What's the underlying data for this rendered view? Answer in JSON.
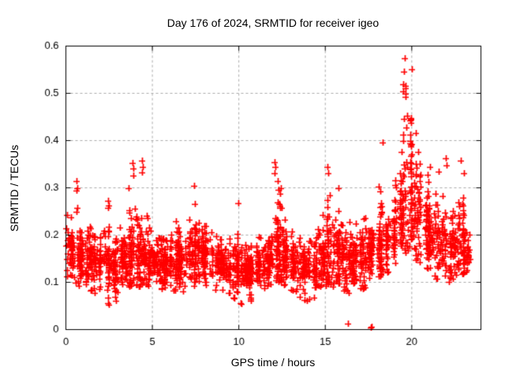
{
  "chart_data": {
    "type": "scatter",
    "title": "Day 176 of 2024, SRMTID for receiver igeo",
    "xlabel": "GPS time / hours",
    "ylabel": "SRMTID / TECUs",
    "xlim": [
      0,
      24
    ],
    "ylim": [
      0,
      0.6
    ],
    "xtick_values": [
      0,
      5,
      10,
      15,
      20
    ],
    "xtick_labels": [
      "0",
      "5",
      "10",
      "15",
      "20"
    ],
    "ytick_values": [
      0,
      0.1,
      0.2,
      0.3,
      0.4,
      0.5,
      0.6
    ],
    "ytick_labels": [
      "0",
      "0.1",
      "0.2",
      "0.3",
      "0.4",
      "0.5",
      "0.6"
    ],
    "grid": true,
    "legend": "none",
    "marker": "plus",
    "marker_color": "#ff0000",
    "grid_color": "#a9a9a9",
    "axis_color": "#000000",
    "background_color": "#ffffff",
    "seed": 20240176,
    "density_bins": {
      "columns": [
        "t_start",
        "t_end",
        "count",
        "y_min",
        "y_max",
        "y_mode",
        "y_sigma"
      ],
      "rows": [
        [
          0.0,
          0.5,
          55,
          0.1,
          0.25,
          0.165,
          0.03
        ],
        [
          0.5,
          1.0,
          60,
          0.09,
          0.24,
          0.16,
          0.035
        ],
        [
          1.0,
          1.5,
          60,
          0.08,
          0.22,
          0.15,
          0.03
        ],
        [
          1.5,
          2.0,
          60,
          0.06,
          0.2,
          0.14,
          0.03
        ],
        [
          2.0,
          2.5,
          60,
          0.05,
          0.22,
          0.14,
          0.032
        ],
        [
          2.5,
          3.0,
          60,
          0.06,
          0.2,
          0.135,
          0.03
        ],
        [
          3.0,
          3.5,
          55,
          0.09,
          0.22,
          0.15,
          0.03
        ],
        [
          3.5,
          4.0,
          65,
          0.09,
          0.3,
          0.155,
          0.04
        ],
        [
          4.0,
          4.5,
          65,
          0.09,
          0.32,
          0.16,
          0.045
        ],
        [
          4.5,
          5.0,
          55,
          0.09,
          0.27,
          0.155,
          0.035
        ],
        [
          5.0,
          5.5,
          60,
          0.07,
          0.22,
          0.145,
          0.03
        ],
        [
          5.5,
          6.0,
          60,
          0.06,
          0.2,
          0.14,
          0.03
        ],
        [
          6.0,
          6.5,
          60,
          0.08,
          0.26,
          0.145,
          0.032
        ],
        [
          6.5,
          7.0,
          60,
          0.08,
          0.24,
          0.15,
          0.03
        ],
        [
          7.0,
          7.5,
          65,
          0.09,
          0.29,
          0.16,
          0.038
        ],
        [
          7.5,
          8.0,
          60,
          0.1,
          0.26,
          0.165,
          0.032
        ],
        [
          8.0,
          8.5,
          55,
          0.09,
          0.22,
          0.155,
          0.028
        ],
        [
          8.5,
          9.0,
          55,
          0.08,
          0.2,
          0.145,
          0.028
        ],
        [
          9.0,
          9.5,
          55,
          0.07,
          0.2,
          0.135,
          0.028
        ],
        [
          9.5,
          10.0,
          60,
          0.06,
          0.27,
          0.135,
          0.032
        ],
        [
          10.0,
          10.5,
          60,
          0.05,
          0.18,
          0.125,
          0.028
        ],
        [
          10.5,
          11.0,
          55,
          0.06,
          0.18,
          0.125,
          0.026
        ],
        [
          11.0,
          11.5,
          60,
          0.08,
          0.2,
          0.14,
          0.028
        ],
        [
          11.5,
          12.0,
          60,
          0.09,
          0.24,
          0.15,
          0.03
        ],
        [
          12.0,
          12.5,
          70,
          0.1,
          0.36,
          0.165,
          0.055
        ],
        [
          12.5,
          13.0,
          55,
          0.09,
          0.24,
          0.15,
          0.03
        ],
        [
          13.0,
          13.5,
          55,
          0.08,
          0.22,
          0.14,
          0.028
        ],
        [
          13.5,
          14.0,
          55,
          0.05,
          0.2,
          0.135,
          0.03
        ],
        [
          14.0,
          14.5,
          55,
          0.06,
          0.2,
          0.135,
          0.028
        ],
        [
          14.5,
          15.0,
          55,
          0.09,
          0.25,
          0.15,
          0.032
        ],
        [
          15.0,
          15.5,
          65,
          0.09,
          0.35,
          0.16,
          0.05
        ],
        [
          15.5,
          16.0,
          60,
          0.09,
          0.31,
          0.16,
          0.042
        ],
        [
          16.0,
          16.5,
          55,
          0.07,
          0.28,
          0.15,
          0.038
        ],
        [
          16.5,
          17.0,
          55,
          0.06,
          0.25,
          0.145,
          0.035
        ],
        [
          17.0,
          17.5,
          55,
          0.08,
          0.28,
          0.155,
          0.038
        ],
        [
          17.5,
          18.0,
          55,
          0.09,
          0.3,
          0.165,
          0.04
        ],
        [
          18.0,
          18.5,
          60,
          0.11,
          0.4,
          0.18,
          0.05
        ],
        [
          18.5,
          19.0,
          60,
          0.12,
          0.38,
          0.19,
          0.05
        ],
        [
          19.0,
          19.5,
          65,
          0.14,
          0.46,
          0.23,
          0.065
        ],
        [
          19.5,
          20.0,
          75,
          0.16,
          0.56,
          0.3,
          0.085
        ],
        [
          20.0,
          20.5,
          65,
          0.14,
          0.44,
          0.25,
          0.065
        ],
        [
          20.5,
          21.0,
          60,
          0.12,
          0.37,
          0.21,
          0.05
        ],
        [
          21.0,
          21.5,
          55,
          0.1,
          0.3,
          0.18,
          0.04
        ],
        [
          21.5,
          22.0,
          55,
          0.11,
          0.37,
          0.185,
          0.048
        ],
        [
          22.0,
          22.5,
          55,
          0.1,
          0.28,
          0.165,
          0.036
        ],
        [
          22.5,
          23.0,
          55,
          0.11,
          0.36,
          0.175,
          0.045
        ],
        [
          23.0,
          23.4,
          35,
          0.12,
          0.22,
          0.165,
          0.028
        ]
      ]
    },
    "outlier_points": [
      [
        0.63,
        0.315
      ],
      [
        0.66,
        0.3
      ],
      [
        0.6,
        0.295
      ],
      [
        0.64,
        0.258
      ],
      [
        0.61,
        0.25
      ],
      [
        2.45,
        0.272
      ],
      [
        2.5,
        0.262
      ],
      [
        2.42,
        0.258
      ],
      [
        3.85,
        0.352
      ],
      [
        3.9,
        0.34
      ],
      [
        3.88,
        0.325
      ],
      [
        4.42,
        0.358
      ],
      [
        4.45,
        0.345
      ],
      [
        4.4,
        0.332
      ],
      [
        7.4,
        0.305
      ],
      [
        9.95,
        0.268
      ],
      [
        12.05,
        0.355
      ],
      [
        12.1,
        0.345
      ],
      [
        12.08,
        0.33
      ],
      [
        15.12,
        0.345
      ],
      [
        15.15,
        0.33
      ],
      [
        16.3,
        0.012
      ],
      [
        17.62,
        0.004
      ],
      [
        17.66,
        0.006
      ],
      [
        18.3,
        0.395
      ],
      [
        19.58,
        0.575
      ],
      [
        19.55,
        0.545
      ],
      [
        19.52,
        0.52
      ],
      [
        19.62,
        0.5
      ],
      [
        19.66,
        0.492
      ],
      [
        21.05,
        0.345
      ],
      [
        21.95,
        0.362
      ],
      [
        22.0,
        0.348
      ],
      [
        22.85,
        0.358
      ],
      [
        23.0,
        0.33
      ]
    ]
  }
}
